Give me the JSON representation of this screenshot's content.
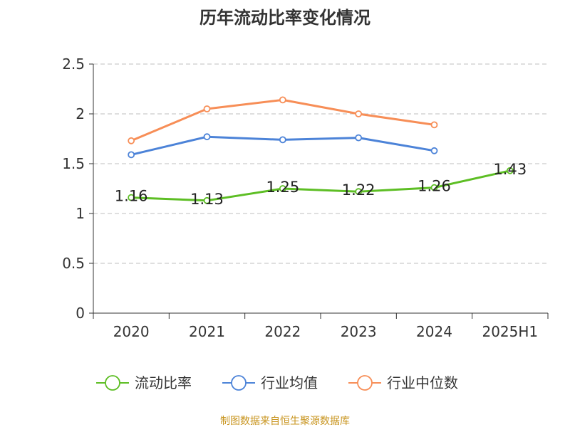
{
  "source": "制图数据来自恒生聚源数据库",
  "chart_data": {
    "type": "line",
    "title": "历年流动比率变化情况",
    "xlabel": "",
    "ylabel": "",
    "categories": [
      "2020",
      "2021",
      "2022",
      "2023",
      "2024",
      "2025H1"
    ],
    "ylim": [
      0,
      2.5
    ],
    "yticks": [
      "0",
      "0.5",
      "1",
      "1.5",
      "2",
      "2.5"
    ],
    "grid": true,
    "legend_position": "bottom",
    "series": [
      {
        "name": "流动比率",
        "color": "#5dbe24",
        "values": [
          1.16,
          1.13,
          1.25,
          1.22,
          1.26,
          1.43
        ],
        "labels": [
          "1.16",
          "1.13",
          "1.25",
          "1.22",
          "1.26",
          "1.43"
        ]
      },
      {
        "name": "行业均值",
        "color": "#4c83d8",
        "values": [
          1.59,
          1.77,
          1.74,
          1.76,
          1.63,
          null
        ]
      },
      {
        "name": "行业中位数",
        "color": "#f78e57",
        "values": [
          1.73,
          2.05,
          2.14,
          2.0,
          1.89,
          null
        ]
      }
    ]
  }
}
